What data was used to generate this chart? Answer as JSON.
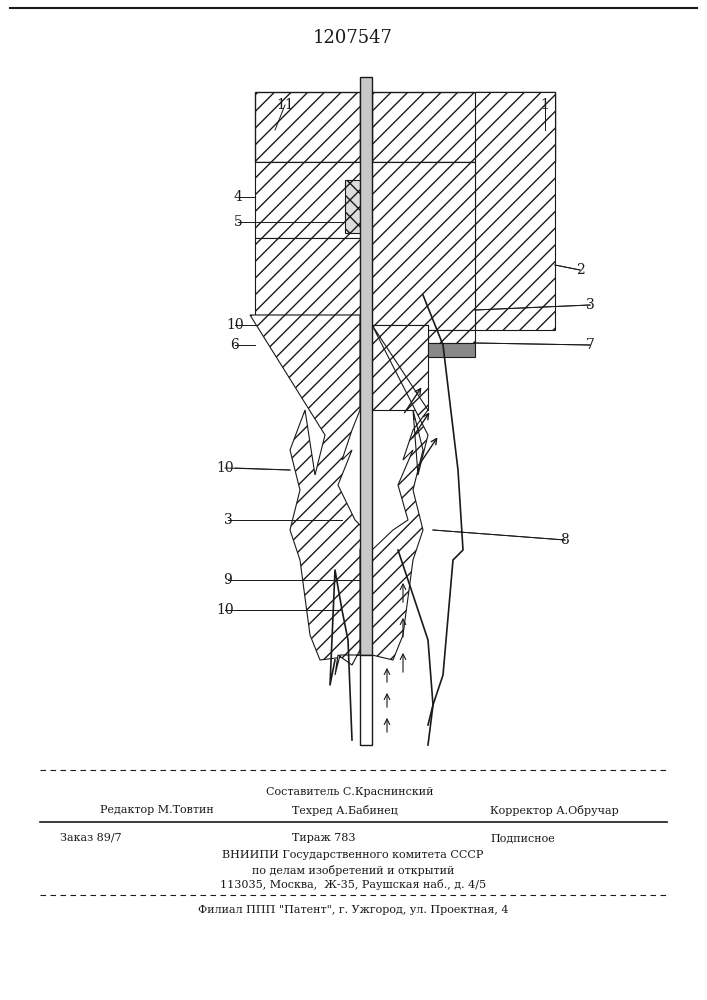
{
  "patent_number": "1207547",
  "background_color": "#ffffff",
  "line_color": "#1a1a1a",
  "texts": {
    "redaktor": "Редактор М.Товтин",
    "sostavitel": "Составитель С.Краснинский",
    "tekhred": "Техред А.Бабинец",
    "korrektor": "Корректор А.Обручар",
    "zakaz": "Заказ 89/7",
    "tirazh": "Тираж 783",
    "podpisnoe": "Подписное",
    "vniip1": "ВНИИПИ Государственного комитета СССР",
    "vniip2": "по делам изобретений и открытий",
    "vniip3": "113035, Москва,  Ж-35, Раушская наб., д. 4/5",
    "filial": "Филиал ППП \"Патент\", г. Ужгород, ул. Проектная, 4"
  }
}
